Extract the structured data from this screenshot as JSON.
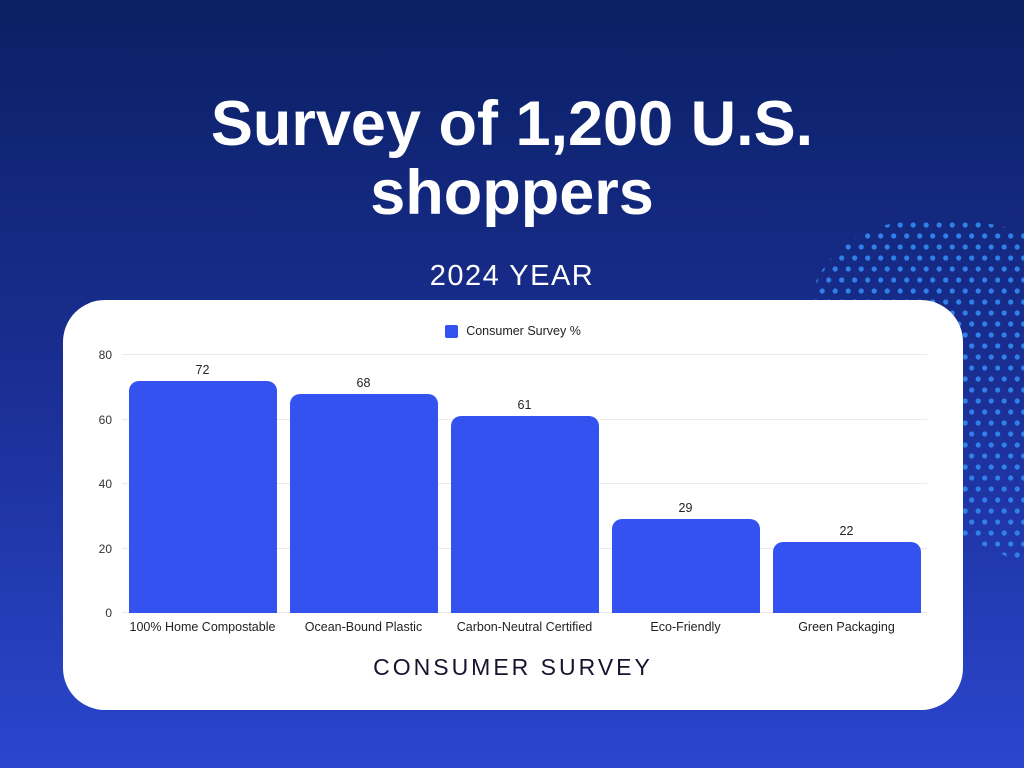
{
  "header": {
    "title_lines": [
      "Survey of 1,200 U.S.",
      "shoppers"
    ],
    "subtitle": "2024 YEAR"
  },
  "chart_data": {
    "type": "bar",
    "categories": [
      "100% Home Compostable",
      "Ocean-Bound Plastic",
      "Carbon-Neutral Certified",
      "Eco-Friendly",
      "Green Packaging"
    ],
    "values": [
      72,
      68,
      61,
      29,
      22
    ],
    "series_label": "Consumer Survey %",
    "title": "Survey of 1,200 U.S. shoppers",
    "xlabel": "CONSUMER SURVEY",
    "ylabel": "",
    "ylim": [
      0,
      80
    ],
    "yticks": [
      0,
      20,
      40,
      60,
      80
    ],
    "grid": "horizontal",
    "legend_position": "top-center"
  },
  "colors": {
    "background_top": "#0a2063",
    "background_bottom": "#2a46ce",
    "bar": "#3352f0",
    "dots": "#2f80e8",
    "card": "#ffffff",
    "chart_text": "#222222",
    "title_text": "#ffffff"
  }
}
